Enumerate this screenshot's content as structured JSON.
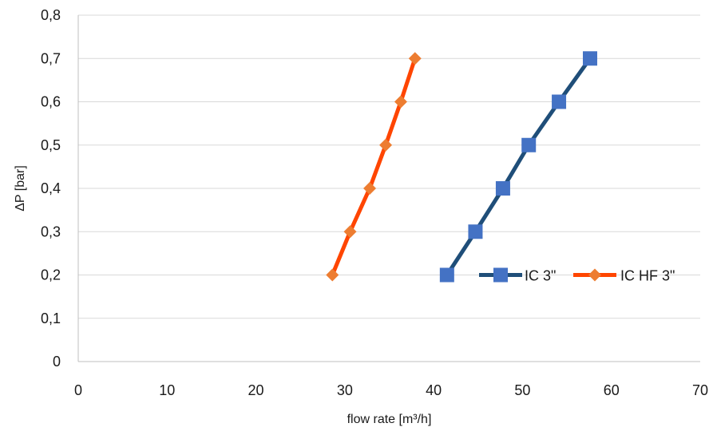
{
  "chart_data": {
    "type": "line",
    "title": "",
    "xlabel": "flow rate [m³/h]",
    "ylabel": "ΔP [bar]",
    "xlim": [
      0,
      70
    ],
    "ylim": [
      0,
      0.8
    ],
    "x_ticks": [
      0,
      10,
      20,
      30,
      40,
      50,
      60,
      70
    ],
    "x_tick_labels": [
      "0",
      "10",
      "20",
      "30",
      "40",
      "50",
      "60",
      "70"
    ],
    "y_ticks": [
      0,
      0.1,
      0.2,
      0.3,
      0.4,
      0.5,
      0.6,
      0.7,
      0.8
    ],
    "y_tick_labels": [
      "0",
      "0,1",
      "0,2",
      "0,3",
      "0,4",
      "0,5",
      "0,6",
      "0,7",
      "0,8"
    ],
    "grid": "horizontal",
    "legend_position": "inside-bottom-right",
    "series": [
      {
        "name": "IC 3\"",
        "color": "#1f4e79",
        "marker": "square",
        "marker_color": "#4472c4",
        "x": [
          41.5,
          44.7,
          47.8,
          50.7,
          54.1,
          57.6
        ],
        "y": [
          0.2,
          0.3,
          0.4,
          0.5,
          0.6,
          0.7
        ]
      },
      {
        "name": "IC HF 3\"",
        "color": "#ff4500",
        "marker": "diamond",
        "marker_color": "#ed7d31",
        "x": [
          28.6,
          30.6,
          32.8,
          34.6,
          36.3,
          37.9
        ],
        "y": [
          0.2,
          0.3,
          0.4,
          0.5,
          0.6,
          0.7
        ]
      }
    ]
  }
}
